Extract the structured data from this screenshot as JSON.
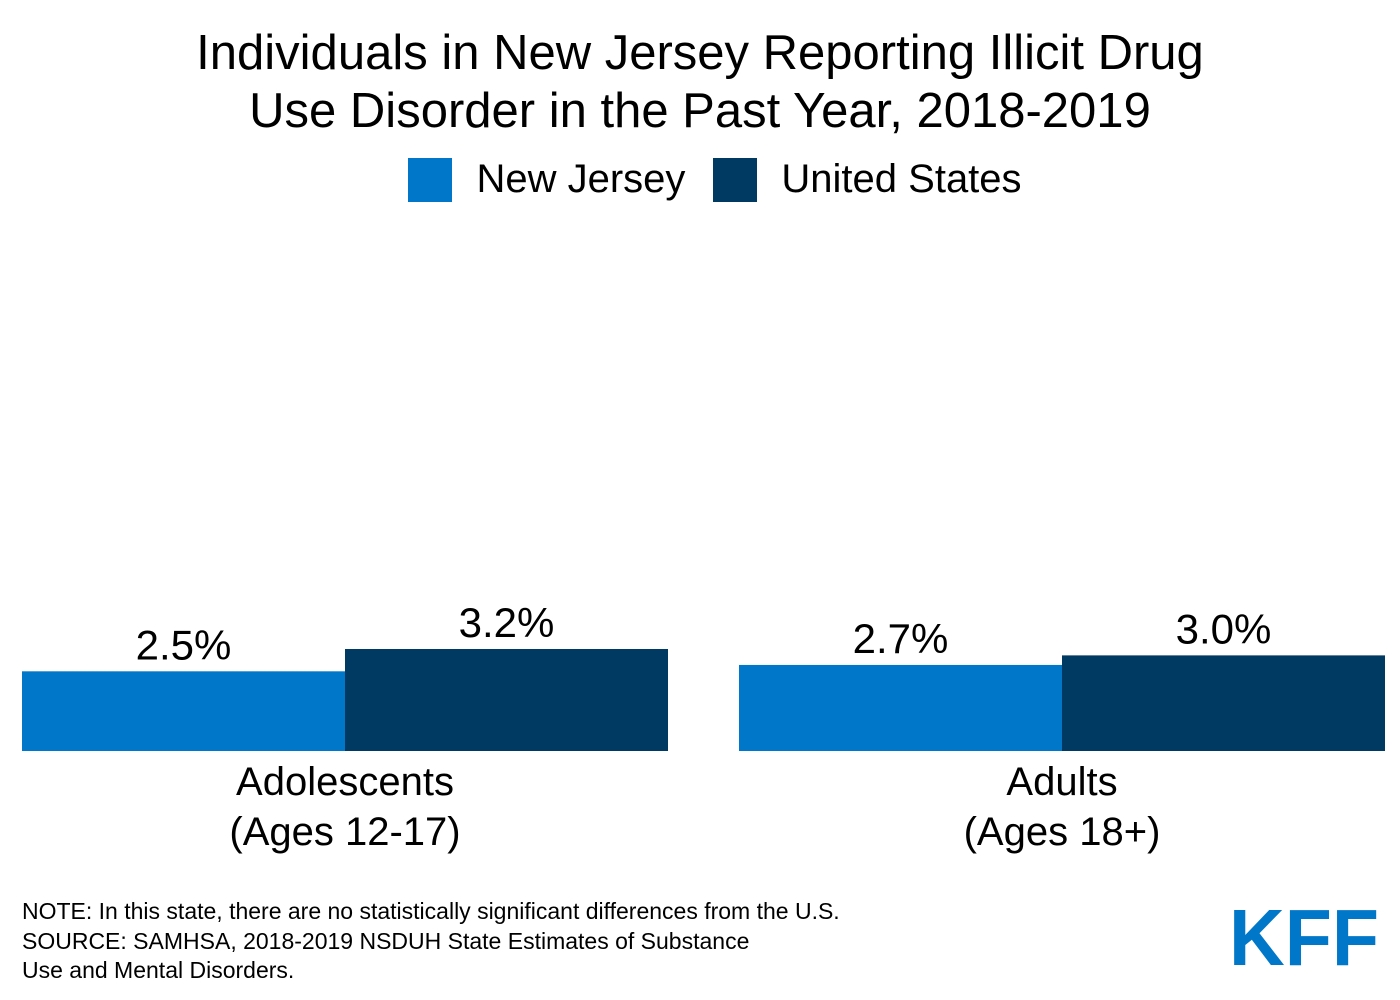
{
  "title_lines": [
    "Individuals in New Jersey Reporting Illicit Drug",
    "Use Disorder in the Past Year, 2018-2019"
  ],
  "colors": {
    "new_jersey": "#0077c8",
    "united_states": "#003a63",
    "text": "#000000",
    "logo": "#0077c8"
  },
  "chart_data": {
    "type": "bar",
    "title": "Individuals in New Jersey Reporting Illicit Drug Use Disorder in the Past Year, 2018-2019",
    "categories": [
      [
        "Adolescents",
        "(Ages 12-17)"
      ],
      [
        "Adults",
        "(Ages 18+)"
      ]
    ],
    "series": [
      {
        "name": "New Jersey",
        "values": [
          2.5,
          2.7
        ],
        "labels": [
          "2.5%",
          "2.7%"
        ]
      },
      {
        "name": "United States",
        "values": [
          3.2,
          3.0
        ],
        "labels": [
          "3.2%",
          "3.0%"
        ]
      }
    ],
    "unit": "%",
    "xlabel": "",
    "ylabel": "",
    "ylim": [
      0,
      16
    ],
    "grid": false,
    "legend": "top-center"
  },
  "footnotes": [
    "NOTE: In this state, there are no statistically significant differences from the U.S.",
    "SOURCE: SAMHSA, 2018-2019 NSDUH State Estimates of Substance",
    "Use and Mental Disorders."
  ],
  "logo_text": "KFF"
}
